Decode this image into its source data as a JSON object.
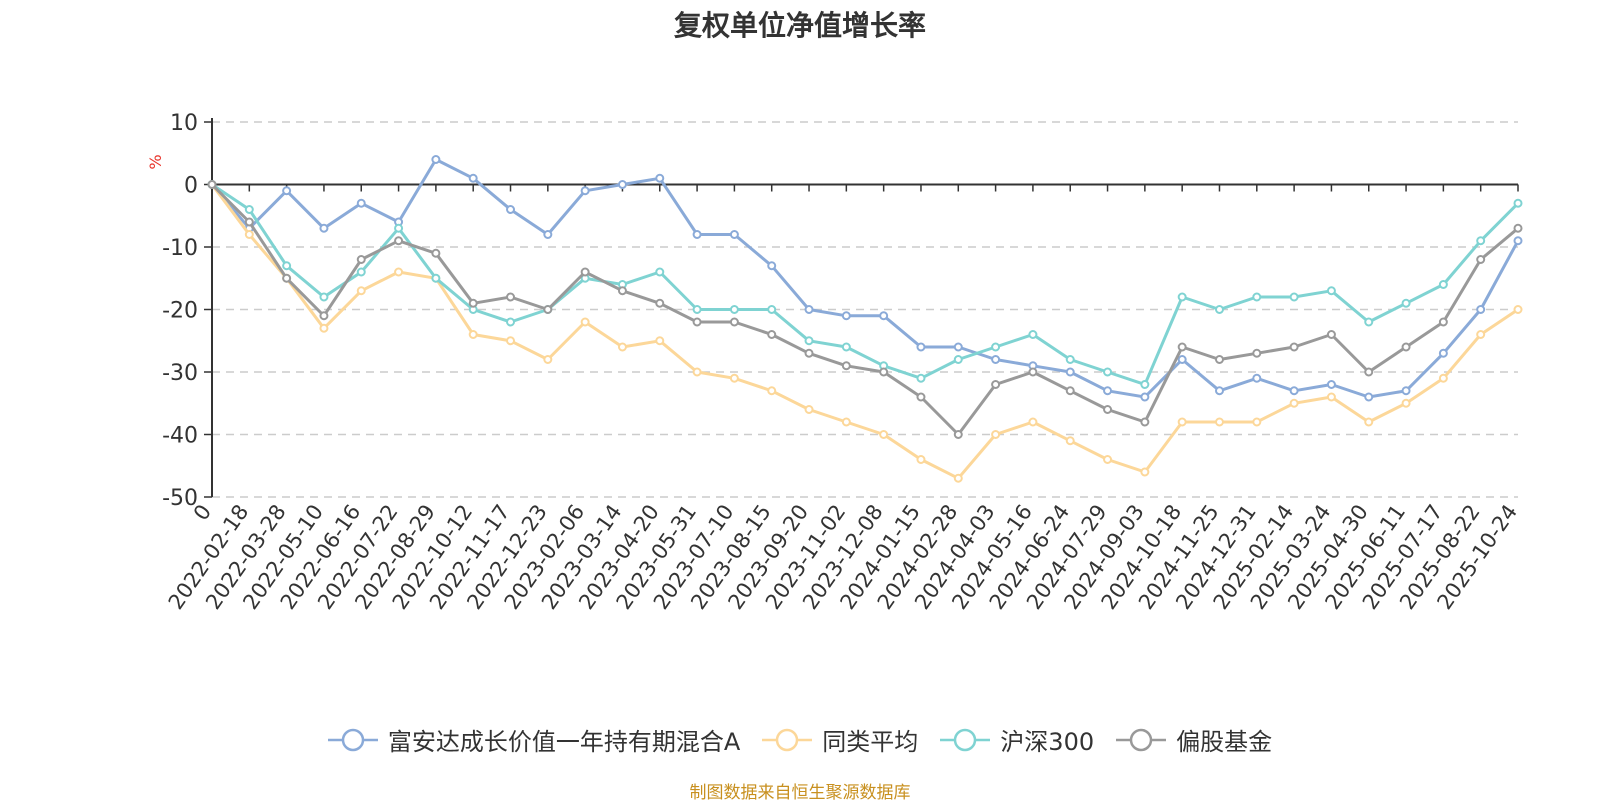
{
  "title": "复权单位净值增长率",
  "source": "制图数据来自恒生聚源数据库",
  "chart_data": {
    "type": "line",
    "title": "复权单位净值增长率",
    "ylabel": "%",
    "ylim": [
      -50,
      10
    ],
    "yticks": [
      10,
      0,
      -10,
      -20,
      -30,
      -40,
      -50
    ],
    "grid": true,
    "legend_position": "bottom",
    "categories": [
      "0",
      "2022-02-18",
      "2022-03-28",
      "2022-05-10",
      "2022-06-16",
      "2022-07-22",
      "2022-08-29",
      "2022-10-12",
      "2022-11-17",
      "2022-12-23",
      "2023-02-06",
      "2023-03-14",
      "2023-04-20",
      "2023-05-31",
      "2023-07-10",
      "2023-08-15",
      "2023-09-20",
      "2023-11-02",
      "2023-12-08",
      "2024-01-15",
      "2024-02-28",
      "2024-04-03",
      "2024-05-16",
      "2024-06-24",
      "2024-07-29",
      "2024-09-03",
      "2024-10-18",
      "2024-11-25",
      "2024-12-31",
      "2025-02-14",
      "2025-03-24",
      "2025-04-30",
      "2025-06-11",
      "2025-07-17",
      "2025-08-22",
      "2025-10-24"
    ],
    "series": [
      {
        "name": "富安达成长价值一年持有期混合A",
        "color": "#8aaad8",
        "values": [
          0,
          -7,
          -1,
          -7,
          -3,
          -6,
          4,
          1,
          -4,
          -8,
          -1,
          0,
          1,
          -8,
          -8,
          -13,
          -20,
          -21,
          -21,
          -26,
          -26,
          -28,
          -29,
          -30,
          -33,
          -34,
          -28,
          -33,
          -31,
          -33,
          -32,
          -34,
          -33,
          -27,
          -20,
          -9
        ]
      },
      {
        "name": "同类平均",
        "color": "#fcd799",
        "values": [
          0,
          -8,
          -15,
          -23,
          -17,
          -14,
          -15,
          -24,
          -25,
          -28,
          -22,
          -26,
          -25,
          -30,
          -31,
          -33,
          -36,
          -38,
          -40,
          -44,
          -47,
          -40,
          -38,
          -41,
          -44,
          -46,
          -38,
          -38,
          -38,
          -35,
          -34,
          -38,
          -35,
          -31,
          -24,
          -20
        ]
      },
      {
        "name": "沪深300",
        "color": "#7fd3d2",
        "values": [
          0,
          -4,
          -13,
          -18,
          -14,
          -7,
          -15,
          -20,
          -22,
          -20,
          -15,
          -16,
          -14,
          -20,
          -20,
          -20,
          -25,
          -26,
          -29,
          -31,
          -28,
          -26,
          -24,
          -28,
          -30,
          -32,
          -18,
          -20,
          -18,
          -18,
          -17,
          -22,
          -19,
          -16,
          -9,
          -3
        ]
      },
      {
        "name": "偏股基金",
        "color": "#999999",
        "values": [
          0,
          -6,
          -15,
          -21,
          -12,
          -9,
          -11,
          -19,
          -18,
          -20,
          -14,
          -17,
          -19,
          -22,
          -22,
          -24,
          -27,
          -29,
          -30,
          -34,
          -40,
          -32,
          -30,
          -33,
          -36,
          -38,
          -26,
          -28,
          -27,
          -26,
          -24,
          -30,
          -26,
          -22,
          -12,
          -7
        ]
      }
    ]
  }
}
